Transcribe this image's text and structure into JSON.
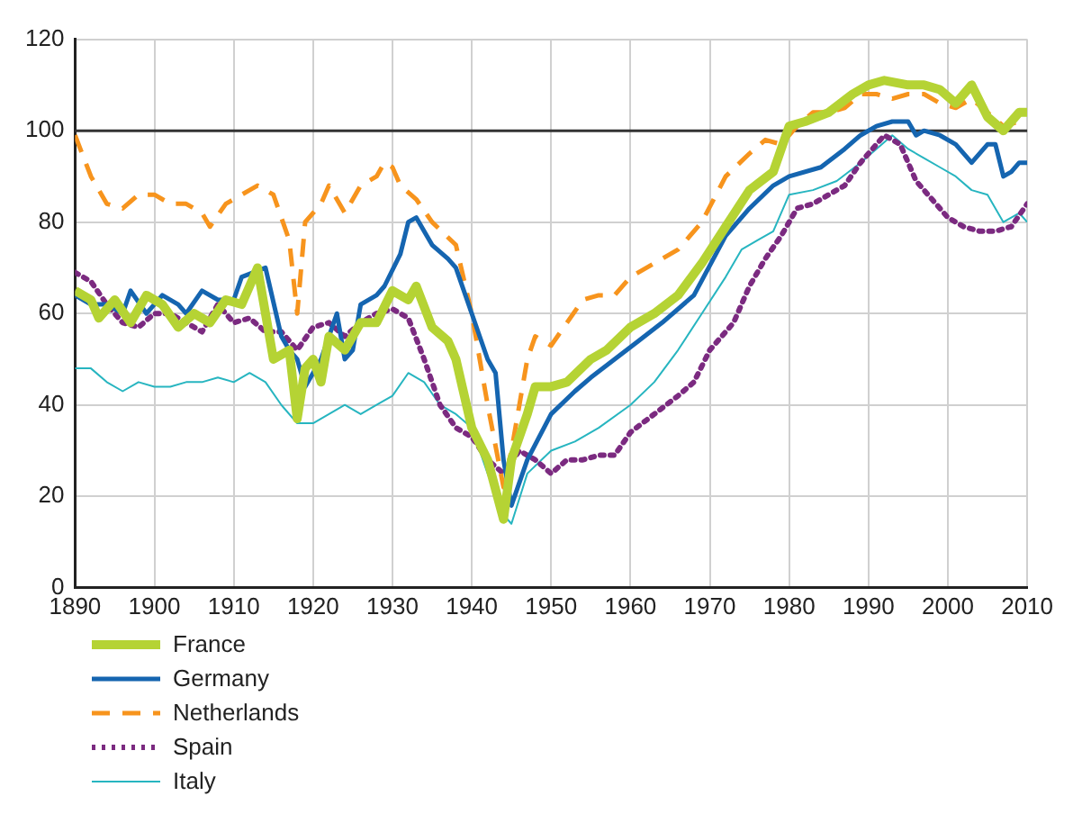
{
  "chart_data": {
    "type": "line",
    "xlim": [
      1890,
      2010
    ],
    "xticks": [
      1890,
      1900,
      1910,
      1920,
      1930,
      1940,
      1950,
      1960,
      1970,
      1980,
      1990,
      2000,
      2010
    ],
    "ylim": [
      0,
      120
    ],
    "yticks": [
      0,
      20,
      40,
      60,
      80,
      100,
      120
    ],
    "grid": true,
    "legend": "bottom",
    "marker": "none",
    "ref_lines": [
      {
        "axis": "y",
        "value": 100,
        "color": "#333333"
      }
    ],
    "series": [
      {
        "name": "France",
        "color": "#b5d334",
        "line_style": "solid",
        "x": [
          1890,
          1892,
          1893,
          1895,
          1897,
          1899,
          1901,
          1903,
          1905,
          1907,
          1909,
          1911,
          1913,
          1915,
          1917,
          1918,
          1919,
          1920,
          1921,
          1922,
          1924,
          1926,
          1928,
          1930,
          1932,
          1933,
          1935,
          1937,
          1938,
          1940,
          1942,
          1944,
          1945,
          1947,
          1948,
          1950,
          1952,
          1955,
          1957,
          1960,
          1963,
          1966,
          1969,
          1972,
          1975,
          1978,
          1980,
          1982,
          1985,
          1988,
          1990,
          1992,
          1995,
          1997,
          1999,
          2001,
          2003,
          2005,
          2007,
          2009,
          2010
        ],
        "values": [
          65,
          63,
          59,
          63,
          58,
          64,
          62,
          57,
          60,
          58,
          63,
          62,
          70,
          50,
          52,
          37,
          48,
          50,
          45,
          55,
          52,
          58,
          58,
          65,
          63,
          66,
          57,
          54,
          50,
          35,
          28,
          15,
          28,
          38,
          44,
          44,
          45,
          50,
          52,
          57,
          60,
          64,
          71,
          79,
          87,
          91,
          101,
          102,
          104,
          108,
          110,
          111,
          110,
          110,
          109,
          106,
          110,
          103,
          100,
          104,
          104
        ]
      },
      {
        "name": "Germany",
        "color": "#1565b0",
        "line_style": "solid",
        "x": [
          1890,
          1892,
          1894,
          1896,
          1897,
          1899,
          1901,
          1903,
          1904,
          1906,
          1908,
          1910,
          1911,
          1914,
          1916,
          1917,
          1918,
          1919,
          1921,
          1923,
          1924,
          1925,
          1926,
          1928,
          1929,
          1931,
          1932,
          1933,
          1935,
          1937,
          1938,
          1940,
          1942,
          1943,
          1944,
          1945,
          1947,
          1950,
          1953,
          1955,
          1958,
          1961,
          1964,
          1968,
          1972,
          1975,
          1978,
          1980,
          1984,
          1987,
          1989,
          1991,
          1993,
          1995,
          1996,
          1997,
          1999,
          2001,
          2003,
          2005,
          2006,
          2007,
          2008,
          2009,
          2010
        ],
        "values": [
          64,
          62,
          62,
          60,
          65,
          60,
          64,
          62,
          60,
          65,
          63,
          63,
          68,
          70,
          55,
          52,
          50,
          44,
          50,
          60,
          50,
          52,
          62,
          64,
          66,
          73,
          80,
          81,
          75,
          72,
          70,
          60,
          50,
          47,
          28,
          18,
          28,
          38,
          43,
          46,
          50,
          54,
          58,
          64,
          77,
          83,
          88,
          90,
          92,
          96,
          99,
          101,
          102,
          102,
          99,
          100,
          99,
          97,
          93,
          97,
          97,
          90,
          91,
          93,
          93
        ]
      },
      {
        "name": "Netherlands",
        "color": "#f7941d",
        "line_style": "dashed",
        "x": [
          1890,
          1892,
          1894,
          1896,
          1898,
          1900,
          1902,
          1904,
          1906,
          1907,
          1909,
          1912,
          1913,
          1915,
          1917,
          1918,
          1919,
          1921,
          1922,
          1924,
          1926,
          1928,
          1929,
          1930,
          1931,
          1933,
          1935,
          1938,
          1940,
          1942,
          1944,
          1945,
          1947,
          1948,
          1950,
          1952,
          1954,
          1956,
          1958,
          1960,
          1963,
          1966,
          1969,
          1972,
          1975,
          1977,
          1979,
          1981,
          1983,
          1985,
          1987,
          1989,
          1991,
          1993,
          1995,
          1997,
          1999,
          2001,
          2003,
          2005,
          2007,
          2009
        ],
        "values": [
          99,
          90,
          84,
          83,
          86,
          86,
          84,
          84,
          82,
          79,
          84,
          87,
          88,
          86,
          76,
          60,
          80,
          84,
          88,
          82,
          88,
          90,
          93,
          92,
          88,
          85,
          80,
          75,
          60,
          40,
          22,
          30,
          50,
          55,
          53,
          58,
          63,
          64,
          64,
          68,
          71,
          74,
          80,
          90,
          95,
          98,
          97,
          101,
          104,
          104,
          105,
          108,
          108,
          107,
          108,
          108,
          106,
          105,
          107,
          104,
          101,
          102
        ]
      },
      {
        "name": "Spain",
        "color": "#7b2a80",
        "line_style": "dotted",
        "x": [
          1890,
          1892,
          1894,
          1896,
          1898,
          1900,
          1902,
          1904,
          1906,
          1908,
          1910,
          1912,
          1914,
          1916,
          1918,
          1920,
          1922,
          1924,
          1926,
          1928,
          1930,
          1932,
          1934,
          1936,
          1938,
          1940,
          1942,
          1944,
          1946,
          1948,
          1950,
          1952,
          1954,
          1956,
          1958,
          1960,
          1963,
          1966,
          1968,
          1970,
          1973,
          1975,
          1977,
          1979,
          1981,
          1983,
          1985,
          1987,
          1989,
          1991,
          1992,
          1994,
          1996,
          1998,
          2000,
          2002,
          2004,
          2006,
          2008,
          2010
        ],
        "values": [
          69,
          67,
          62,
          58,
          57,
          60,
          60,
          58,
          56,
          62,
          58,
          59,
          56,
          56,
          52,
          57,
          58,
          55,
          58,
          60,
          61,
          59,
          50,
          40,
          35,
          33,
          28,
          25,
          30,
          28,
          25,
          28,
          28,
          29,
          29,
          34,
          38,
          42,
          45,
          52,
          58,
          66,
          72,
          77,
          83,
          84,
          86,
          88,
          93,
          97,
          99,
          97,
          89,
          85,
          81,
          79,
          78,
          78,
          79,
          84
        ]
      },
      {
        "name": "Italy",
        "color": "#27b5c0",
        "line_style": "solid",
        "x": [
          1890,
          1892,
          1894,
          1896,
          1898,
          1900,
          1902,
          1904,
          1906,
          1908,
          1910,
          1912,
          1914,
          1916,
          1918,
          1920,
          1922,
          1924,
          1926,
          1928,
          1930,
          1932,
          1934,
          1936,
          1938,
          1940,
          1942,
          1944,
          1945,
          1947,
          1950,
          1953,
          1956,
          1960,
          1963,
          1966,
          1969,
          1972,
          1974,
          1976,
          1978,
          1980,
          1983,
          1986,
          1989,
          1991,
          1993,
          1995,
          1997,
          1999,
          2001,
          2003,
          2005,
          2007,
          2009,
          2010
        ],
        "values": [
          48,
          48,
          45,
          43,
          45,
          44,
          44,
          45,
          45,
          46,
          45,
          47,
          45,
          40,
          36,
          36,
          38,
          40,
          38,
          40,
          42,
          47,
          45,
          40,
          38,
          35,
          25,
          16,
          14,
          25,
          30,
          32,
          35,
          40,
          45,
          52,
          60,
          68,
          74,
          76,
          78,
          86,
          87,
          89,
          93,
          96,
          99,
          96,
          94,
          92,
          90,
          87,
          86,
          80,
          82,
          80
        ]
      }
    ]
  }
}
